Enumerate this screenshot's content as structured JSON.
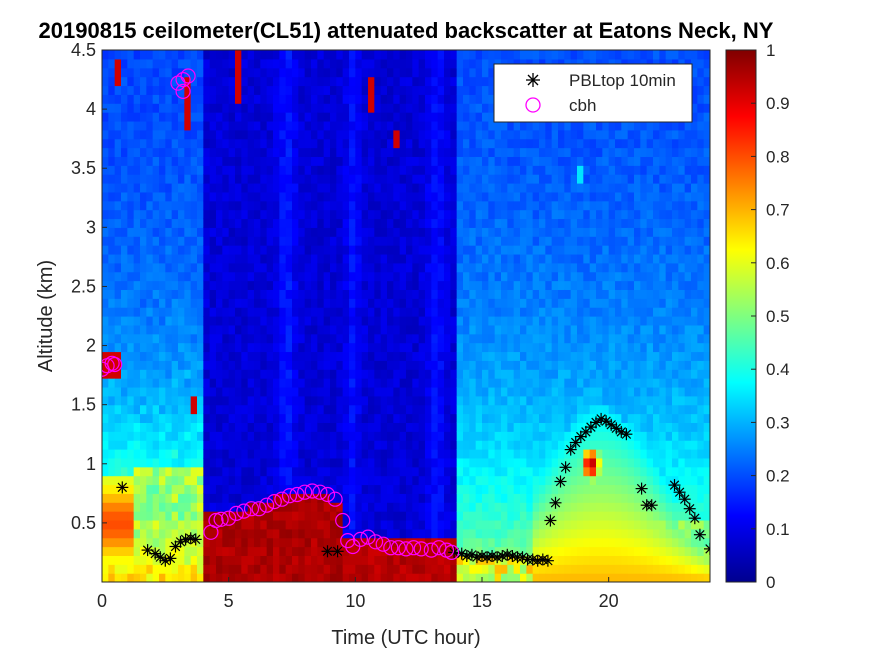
{
  "chart_data": {
    "type": "heatmap",
    "title": "20190815 ceilometer(CL51) attenuated backscatter at Eatons Neck, NY",
    "xlabel": "Time (UTC hour)",
    "ylabel": "Altitude (km)",
    "xlim": [
      0,
      24
    ],
    "ylim": [
      0,
      4.5
    ],
    "xticks": [
      0,
      5,
      10,
      15,
      20
    ],
    "yticks": [
      0.5,
      1,
      1.5,
      2,
      2.5,
      3,
      3.5,
      4,
      4.5
    ],
    "colorbar": {
      "min": 0,
      "max": 1,
      "ticks": [
        0,
        0.1,
        0.2,
        0.3,
        0.4,
        0.5,
        0.6,
        0.7,
        0.8,
        0.9,
        1
      ],
      "colormap": "jet"
    },
    "legend": {
      "placement": "top-right",
      "entries": [
        {
          "name": "PBLtop 10min",
          "marker": "asterisk",
          "color": "#000000"
        },
        {
          "name": "cbh",
          "marker": "circle",
          "color": "#ff00ff"
        }
      ]
    },
    "series": [
      {
        "name": "PBLtop 10min",
        "points": [
          [
            0.8,
            0.8
          ],
          [
            1.8,
            0.27
          ],
          [
            2.1,
            0.24
          ],
          [
            2.3,
            0.21
          ],
          [
            2.5,
            0.18
          ],
          [
            2.7,
            0.2
          ],
          [
            2.9,
            0.3
          ],
          [
            3.1,
            0.34
          ],
          [
            3.3,
            0.36
          ],
          [
            3.5,
            0.37
          ],
          [
            3.7,
            0.36
          ],
          [
            8.9,
            0.26
          ],
          [
            9.3,
            0.26
          ],
          [
            13.9,
            0.25
          ],
          [
            14.2,
            0.24
          ],
          [
            14.4,
            0.22
          ],
          [
            14.6,
            0.23
          ],
          [
            14.8,
            0.21
          ],
          [
            15.0,
            0.22
          ],
          [
            15.2,
            0.21
          ],
          [
            15.4,
            0.22
          ],
          [
            15.6,
            0.21
          ],
          [
            15.8,
            0.22
          ],
          [
            16.0,
            0.23
          ],
          [
            16.2,
            0.22
          ],
          [
            16.4,
            0.21
          ],
          [
            16.6,
            0.21
          ],
          [
            16.8,
            0.19
          ],
          [
            17.0,
            0.19
          ],
          [
            17.2,
            0.18
          ],
          [
            17.4,
            0.19
          ],
          [
            17.6,
            0.18
          ],
          [
            17.7,
            0.52
          ],
          [
            17.9,
            0.67
          ],
          [
            18.1,
            0.85
          ],
          [
            18.3,
            0.97
          ],
          [
            18.5,
            1.12
          ],
          [
            18.7,
            1.18
          ],
          [
            18.9,
            1.23
          ],
          [
            19.1,
            1.27
          ],
          [
            19.3,
            1.31
          ],
          [
            19.5,
            1.35
          ],
          [
            19.7,
            1.38
          ],
          [
            19.9,
            1.36
          ],
          [
            20.1,
            1.33
          ],
          [
            20.3,
            1.3
          ],
          [
            20.5,
            1.27
          ],
          [
            20.7,
            1.25
          ],
          [
            21.3,
            0.79
          ],
          [
            21.5,
            0.65
          ],
          [
            21.7,
            0.65
          ],
          [
            22.6,
            0.82
          ],
          [
            22.8,
            0.76
          ],
          [
            23.0,
            0.7
          ],
          [
            23.2,
            0.62
          ],
          [
            23.4,
            0.54
          ],
          [
            23.6,
            0.4
          ],
          [
            24.0,
            0.28
          ]
        ]
      },
      {
        "name": "cbh",
        "points": [
          [
            0.0,
            1.8
          ],
          [
            0.2,
            1.83
          ],
          [
            0.4,
            1.85
          ],
          [
            0.5,
            1.84
          ],
          [
            3.0,
            4.22
          ],
          [
            3.2,
            4.25
          ],
          [
            3.4,
            4.28
          ],
          [
            3.2,
            4.15
          ],
          [
            4.3,
            0.42
          ],
          [
            4.5,
            0.52
          ],
          [
            4.7,
            0.53
          ],
          [
            5.0,
            0.54
          ],
          [
            5.3,
            0.58
          ],
          [
            5.6,
            0.6
          ],
          [
            5.9,
            0.62
          ],
          [
            6.2,
            0.62
          ],
          [
            6.5,
            0.65
          ],
          [
            6.8,
            0.68
          ],
          [
            7.1,
            0.7
          ],
          [
            7.4,
            0.73
          ],
          [
            7.7,
            0.74
          ],
          [
            8.0,
            0.76
          ],
          [
            8.3,
            0.77
          ],
          [
            8.6,
            0.76
          ],
          [
            8.9,
            0.74
          ],
          [
            9.2,
            0.7
          ],
          [
            9.5,
            0.52
          ],
          [
            9.7,
            0.35
          ],
          [
            9.9,
            0.3
          ],
          [
            10.2,
            0.36
          ],
          [
            10.5,
            0.38
          ],
          [
            10.8,
            0.34
          ],
          [
            11.1,
            0.32
          ],
          [
            11.4,
            0.29
          ],
          [
            11.7,
            0.29
          ],
          [
            12.0,
            0.28
          ],
          [
            12.3,
            0.29
          ],
          [
            12.6,
            0.28
          ],
          [
            13.0,
            0.27
          ],
          [
            13.3,
            0.29
          ],
          [
            13.6,
            0.27
          ],
          [
            13.8,
            0.25
          ]
        ]
      }
    ]
  }
}
